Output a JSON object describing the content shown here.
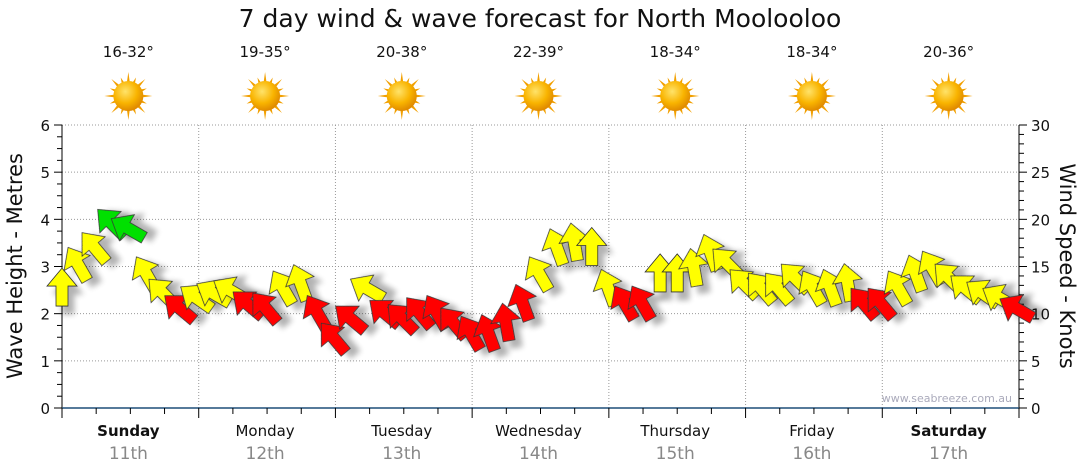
{
  "chart_data": {
    "type": "scatter",
    "title": "7 day wind & wave forecast for North Moolooloo",
    "ylabel": "Wave Height - Metres",
    "y2label": "Wind Speed - Knots",
    "ylim": [
      0,
      6
    ],
    "y2lim": [
      0,
      30
    ],
    "yticks": [
      "0",
      "1",
      "2",
      "3",
      "4",
      "5",
      "6"
    ],
    "y2ticks": [
      "0",
      "5",
      "10",
      "15",
      "20",
      "25",
      "30"
    ],
    "grid": true,
    "watermark": "www.seabreeze.com.au",
    "days": [
      {
        "name": "Sunday",
        "date": "11th",
        "temp": "16-32°",
        "bold": true
      },
      {
        "name": "Monday",
        "date": "12th",
        "temp": "19-35°",
        "bold": false
      },
      {
        "name": "Tuesday",
        "date": "13th",
        "temp": "20-38°",
        "bold": false
      },
      {
        "name": "Wednesday",
        "date": "14th",
        "temp": "22-39°",
        "bold": false
      },
      {
        "name": "Thursday",
        "date": "15th",
        "temp": "18-34°",
        "bold": false
      },
      {
        "name": "Friday",
        "date": "16th",
        "temp": "18-34°",
        "bold": false
      },
      {
        "name": "Saturday",
        "date": "17th",
        "temp": "20-36°",
        "bold": true
      }
    ],
    "colors": {
      "low": "#ff0000",
      "mid": "#ffff00",
      "high": "#00e000",
      "sun": "#f7a800",
      "axis": "#1f4e79"
    },
    "wind": {
      "hours_step": 3,
      "knots": [
        12.5,
        15,
        16.8,
        19.4,
        18.9,
        14,
        12,
        10.4,
        11.5,
        12,
        12.3,
        10.8,
        10.4,
        12.5,
        13,
        9.9,
        7.2,
        9.3,
        12.5,
        9.9,
        9.3,
        9.9,
        9.9,
        8.8,
        7.7,
        7.7,
        8.8,
        10.9,
        14,
        16.8,
        17.3,
        16.8,
        12.5,
        10.9,
        10.9,
        14,
        14,
        14.6,
        16.2,
        15.2,
        13,
        12.5,
        12.5,
        13.6,
        12.5,
        12.5,
        13,
        10.9,
        10.9,
        12.5,
        14,
        14.6,
        13.6,
        12.5,
        12,
        11.5,
        10.4
      ],
      "direction_deg": [
        0,
        330,
        320,
        315,
        300,
        330,
        315,
        310,
        305,
        300,
        300,
        310,
        320,
        330,
        340,
        330,
        320,
        310,
        300,
        310,
        315,
        320,
        330,
        320,
        330,
        340,
        350,
        340,
        330,
        340,
        350,
        0,
        340,
        330,
        330,
        0,
        0,
        350,
        340,
        315,
        315,
        320,
        320,
        315,
        330,
        340,
        350,
        320,
        320,
        330,
        340,
        330,
        315,
        310,
        305,
        300,
        300
      ]
    }
  }
}
